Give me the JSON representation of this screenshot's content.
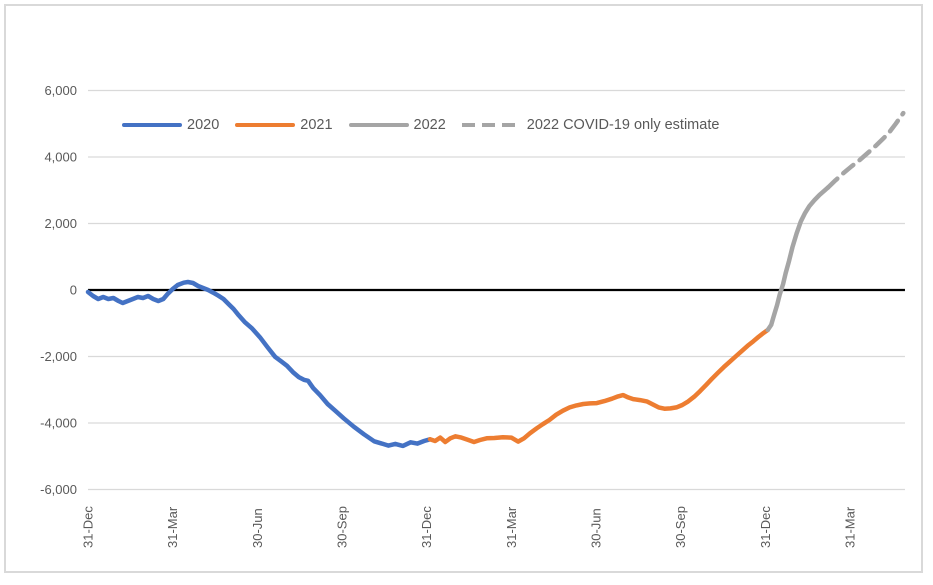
{
  "figure": {
    "background": "#ffffff",
    "border_color": "#d9d9d9"
  },
  "legend": {
    "items": [
      {
        "label": "2020",
        "color": "#4472C4",
        "style": "solid"
      },
      {
        "label": "2021",
        "color": "#ED7D31",
        "style": "solid"
      },
      {
        "label": "2022",
        "color": "#A5A5A5",
        "style": "solid"
      },
      {
        "label": "2022 COVID-19 only estimate",
        "color": "#A5A5A5",
        "style": "dashed"
      }
    ]
  },
  "chart_data": {
    "type": "line",
    "title": "",
    "xlabel": "",
    "ylabel": "",
    "x_unit": "quarters since 31-Dec-2019",
    "x_tick_labels": [
      "31-Dec",
      "31-Mar",
      "30-Jun",
      "30-Sep",
      "31-Dec",
      "31-Mar",
      "30-Jun",
      "30-Sep",
      "31-Dec",
      "31-Mar"
    ],
    "x_tick_positions": [
      0,
      1,
      2,
      3,
      4,
      5,
      6,
      7,
      8,
      9
    ],
    "xlim": [
      0,
      9.65
    ],
    "y_ticks": [
      6000,
      4000,
      2000,
      0,
      -2000,
      -4000,
      -6000
    ],
    "y_tick_labels": [
      "6,000",
      "4,000",
      "2,000",
      "0",
      "-2,000",
      "-4,000",
      "-6,000"
    ],
    "ylim": [
      -6000,
      6000
    ],
    "grid": "horizontal-only",
    "gridline_color": "#d9d9d9",
    "zero_axis_color": "#000000",
    "tick_text_color": "#595959",
    "legend_position": "top-inside",
    "series": [
      {
        "name": "2020",
        "color": "#4472C4",
        "dash": false,
        "points": [
          [
            0,
            -60
          ],
          [
            0.06,
            -180
          ],
          [
            0.12,
            -270
          ],
          [
            0.18,
            -210
          ],
          [
            0.24,
            -270
          ],
          [
            0.3,
            -240
          ],
          [
            0.36,
            -330
          ],
          [
            0.41,
            -390
          ],
          [
            0.47,
            -330
          ],
          [
            0.53,
            -270
          ],
          [
            0.59,
            -210
          ],
          [
            0.65,
            -240
          ],
          [
            0.71,
            -180
          ],
          [
            0.77,
            -270
          ],
          [
            0.83,
            -330
          ],
          [
            0.89,
            -270
          ],
          [
            0.94,
            -120
          ],
          [
            1,
            30
          ],
          [
            1.06,
            150
          ],
          [
            1.13,
            220
          ],
          [
            1.18,
            240
          ],
          [
            1.24,
            210
          ],
          [
            1.3,
            120
          ],
          [
            1.36,
            60
          ],
          [
            1.42,
            0
          ],
          [
            1.48,
            -80
          ],
          [
            1.54,
            -170
          ],
          [
            1.6,
            -270
          ],
          [
            1.66,
            -420
          ],
          [
            1.72,
            -570
          ],
          [
            1.78,
            -760
          ],
          [
            1.85,
            -960
          ],
          [
            1.94,
            -1160
          ],
          [
            2.03,
            -1420
          ],
          [
            2.12,
            -1720
          ],
          [
            2.21,
            -2010
          ],
          [
            2.28,
            -2140
          ],
          [
            2.35,
            -2280
          ],
          [
            2.42,
            -2470
          ],
          [
            2.49,
            -2620
          ],
          [
            2.55,
            -2700
          ],
          [
            2.6,
            -2730
          ],
          [
            2.66,
            -2950
          ],
          [
            2.74,
            -3160
          ],
          [
            2.83,
            -3430
          ],
          [
            2.92,
            -3630
          ],
          [
            3.02,
            -3860
          ],
          [
            3.14,
            -4110
          ],
          [
            3.26,
            -4340
          ],
          [
            3.38,
            -4550
          ],
          [
            3.46,
            -4610
          ],
          [
            3.55,
            -4680
          ],
          [
            3.63,
            -4630
          ],
          [
            3.72,
            -4690
          ],
          [
            3.81,
            -4580
          ],
          [
            3.89,
            -4620
          ],
          [
            3.97,
            -4540
          ],
          [
            4.04,
            -4490
          ]
        ]
      },
      {
        "name": "2021",
        "color": "#ED7D31",
        "dash": false,
        "points": [
          [
            4.04,
            -4490
          ],
          [
            4.1,
            -4540
          ],
          [
            4.16,
            -4440
          ],
          [
            4.22,
            -4570
          ],
          [
            4.28,
            -4460
          ],
          [
            4.34,
            -4400
          ],
          [
            4.41,
            -4440
          ],
          [
            4.48,
            -4500
          ],
          [
            4.56,
            -4570
          ],
          [
            4.63,
            -4510
          ],
          [
            4.71,
            -4460
          ],
          [
            4.8,
            -4450
          ],
          [
            4.9,
            -4430
          ],
          [
            5,
            -4440
          ],
          [
            5.08,
            -4560
          ],
          [
            5.15,
            -4460
          ],
          [
            5.22,
            -4310
          ],
          [
            5.3,
            -4160
          ],
          [
            5.37,
            -4040
          ],
          [
            5.45,
            -3910
          ],
          [
            5.53,
            -3750
          ],
          [
            5.61,
            -3630
          ],
          [
            5.69,
            -3530
          ],
          [
            5.77,
            -3470
          ],
          [
            5.85,
            -3430
          ],
          [
            5.93,
            -3410
          ],
          [
            6.01,
            -3400
          ],
          [
            6.1,
            -3340
          ],
          [
            6.19,
            -3270
          ],
          [
            6.26,
            -3200
          ],
          [
            6.32,
            -3160
          ],
          [
            6.38,
            -3230
          ],
          [
            6.44,
            -3280
          ],
          [
            6.52,
            -3310
          ],
          [
            6.6,
            -3350
          ],
          [
            6.67,
            -3440
          ],
          [
            6.74,
            -3530
          ],
          [
            6.81,
            -3570
          ],
          [
            6.88,
            -3560
          ],
          [
            6.95,
            -3530
          ],
          [
            7.02,
            -3460
          ],
          [
            7.09,
            -3350
          ],
          [
            7.16,
            -3210
          ],
          [
            7.23,
            -3040
          ],
          [
            7.3,
            -2860
          ],
          [
            7.37,
            -2670
          ],
          [
            7.44,
            -2490
          ],
          [
            7.51,
            -2320
          ],
          [
            7.58,
            -2160
          ],
          [
            7.65,
            -2000
          ],
          [
            7.72,
            -1840
          ],
          [
            7.79,
            -1680
          ],
          [
            7.86,
            -1540
          ],
          [
            7.92,
            -1410
          ],
          [
            7.98,
            -1290
          ],
          [
            8.03,
            -1200
          ]
        ]
      },
      {
        "name": "2022",
        "color": "#A5A5A5",
        "dash": false,
        "points": [
          [
            8.03,
            -1200
          ],
          [
            8.07,
            -1050
          ],
          [
            8.1,
            -790
          ],
          [
            8.14,
            -450
          ],
          [
            8.17,
            -140
          ],
          [
            8.21,
            180
          ],
          [
            8.24,
            500
          ],
          [
            8.28,
            870
          ],
          [
            8.32,
            1280
          ],
          [
            8.37,
            1700
          ],
          [
            8.42,
            2060
          ],
          [
            8.47,
            2320
          ],
          [
            8.52,
            2520
          ],
          [
            8.58,
            2700
          ],
          [
            8.64,
            2860
          ],
          [
            8.7,
            2990
          ],
          [
            8.74,
            3080
          ]
        ]
      },
      {
        "name": "2022 COVID-19 only estimate",
        "color": "#A5A5A5",
        "dash": true,
        "points": [
          [
            8.74,
            3080
          ],
          [
            8.83,
            3300
          ],
          [
            8.93,
            3530
          ],
          [
            9.02,
            3720
          ],
          [
            9.12,
            3920
          ],
          [
            9.21,
            4120
          ],
          [
            9.31,
            4350
          ],
          [
            9.4,
            4570
          ],
          [
            9.47,
            4760
          ],
          [
            9.54,
            5000
          ],
          [
            9.63,
            5320
          ]
        ]
      }
    ]
  }
}
